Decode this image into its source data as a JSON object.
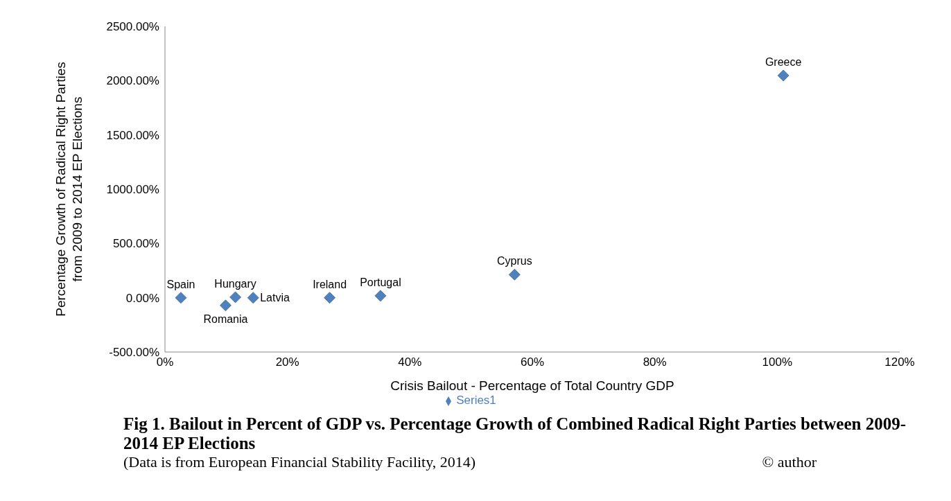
{
  "chart_data": {
    "type": "scatter",
    "title": "Fig 1. Bailout in Percent of GDP vs. Percentage Growth of Combined Radical Right Parties between 2009-2014 EP Elections",
    "xlabel": "Crisis Bailout - Percentage of Total Country GDP",
    "ylabel": "Percentage Growth of Radical Right Parties from 2009 to 2014 EP Elections",
    "series": [
      {
        "name": "Series1",
        "color": "#4f81bd",
        "x": [
          2.6,
          9.9,
          11.5,
          14.4,
          26.9,
          35.2,
          57.1,
          101
        ],
        "values": [
          0,
          -71,
          5,
          0,
          0,
          18,
          213,
          2047
        ]
      }
    ],
    "xlim": [
      0,
      120
    ],
    "xticks": [
      {
        "value": 0,
        "label": "0%"
      },
      {
        "value": 20,
        "label": "20%"
      },
      {
        "value": 40,
        "label": "40%"
      },
      {
        "value": 60,
        "label": "60%"
      },
      {
        "value": 80,
        "label": "80%"
      },
      {
        "value": 100,
        "label": "100%"
      },
      {
        "value": 120,
        "label": "120%"
      }
    ],
    "ylim": [
      -500,
      2500
    ],
    "yticks": [
      {
        "value": -500,
        "label": "-500.00%"
      },
      {
        "value": 0,
        "label": "0.00%"
      },
      {
        "value": 500,
        "label": "500.00%"
      },
      {
        "value": 1000,
        "label": "1000.00%"
      },
      {
        "value": 1500,
        "label": "1500.00%"
      },
      {
        "value": 2000,
        "label": "2000.00%"
      },
      {
        "value": 2500,
        "label": "2500.00%"
      }
    ],
    "grid": false,
    "legend": "bottom",
    "marker": "diamond",
    "annotations": [
      {
        "text": "Spain",
        "x": 2.6,
        "y": 0
      },
      {
        "text": "Romania",
        "x": 9.9,
        "y": -71
      },
      {
        "text": "Hungary",
        "x": 11.5,
        "y": 5
      },
      {
        "text": "Latvia",
        "x": 14.4,
        "y": 0
      },
      {
        "text": "Ireland",
        "x": 26.9,
        "y": 0
      },
      {
        "text": "Portugal",
        "x": 35.2,
        "y": 18
      },
      {
        "text": "Cyprus",
        "x": 57.1,
        "y": 213
      },
      {
        "text": "Greece",
        "x": 101,
        "y": 2047
      },
      "(Data is from European Financial Stability Facility, 2014)",
      "© author"
    ]
  }
}
